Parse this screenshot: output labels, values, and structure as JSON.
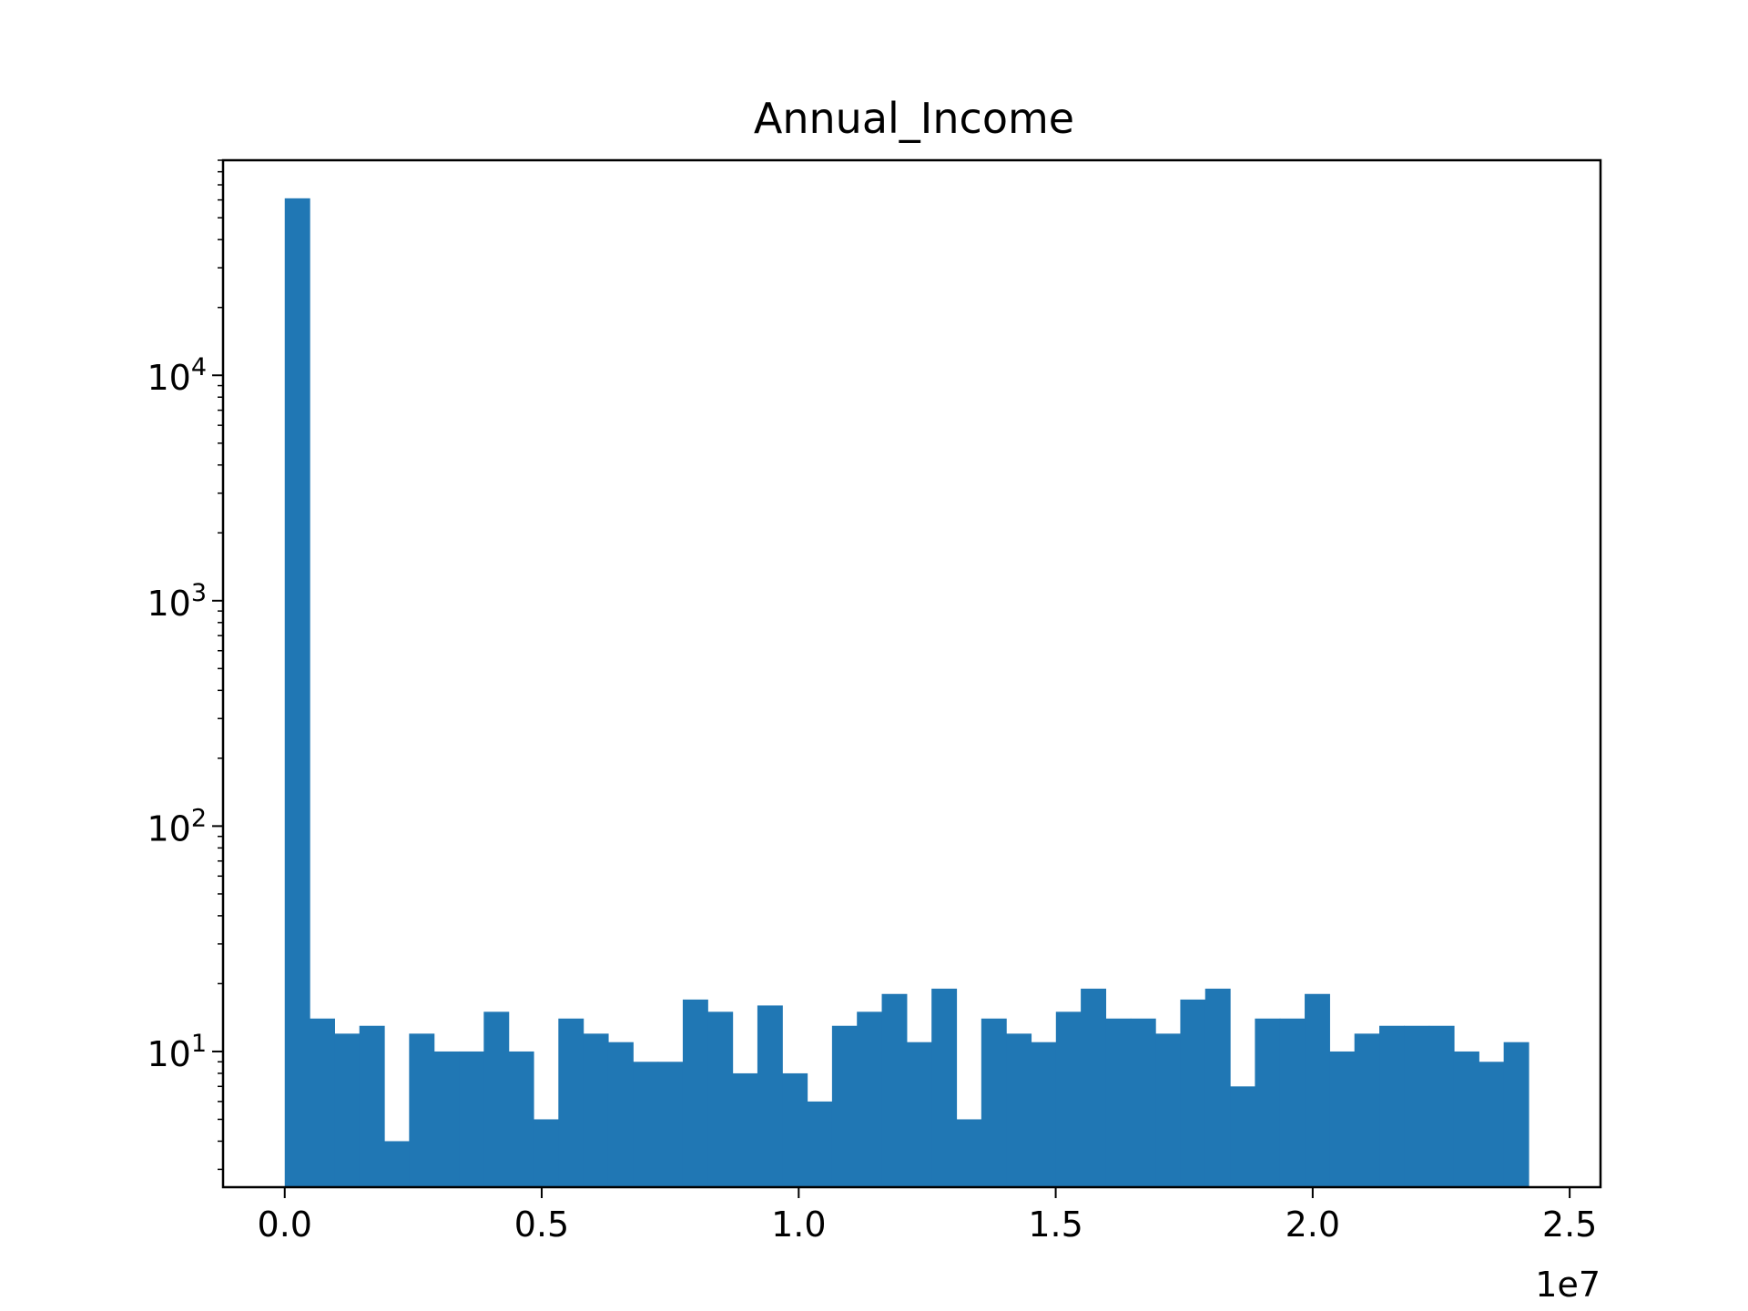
{
  "chart_data": {
    "type": "bar",
    "subtype": "histogram",
    "title": "Annual_Income",
    "xlabel": "",
    "ylabel": "",
    "x_offset_label": "1e7",
    "y_scale": "log",
    "x_range": [
      -1200000,
      25600000
    ],
    "y_range": [
      2.5,
      90000
    ],
    "grid": false,
    "bar_color": "#2077b4",
    "bin_start": 0,
    "bin_width": 484000,
    "counts": [
      61000,
      14,
      12,
      13,
      4,
      12,
      10,
      10,
      15,
      10,
      5,
      14,
      12,
      11,
      9,
      9,
      17,
      15,
      8,
      16,
      8,
      6,
      13,
      15,
      18,
      11,
      19,
      5,
      14,
      12,
      11,
      15,
      19,
      14,
      14,
      12,
      17,
      19,
      7,
      14,
      14,
      18,
      10,
      12,
      13,
      13,
      13,
      10,
      9,
      11
    ],
    "x_ticks": [
      {
        "value": 0,
        "label": "0.0"
      },
      {
        "value": 5000000,
        "label": "0.5"
      },
      {
        "value": 10000000,
        "label": "1.0"
      },
      {
        "value": 15000000,
        "label": "1.5"
      },
      {
        "value": 20000000,
        "label": "2.0"
      },
      {
        "value": 25000000,
        "label": "2.5"
      }
    ],
    "y_ticks": [
      {
        "value": 10,
        "base": "10",
        "exp": "1"
      },
      {
        "value": 100,
        "base": "10",
        "exp": "2"
      },
      {
        "value": 1000,
        "base": "10",
        "exp": "3"
      },
      {
        "value": 10000,
        "base": "10",
        "exp": "4"
      }
    ]
  }
}
